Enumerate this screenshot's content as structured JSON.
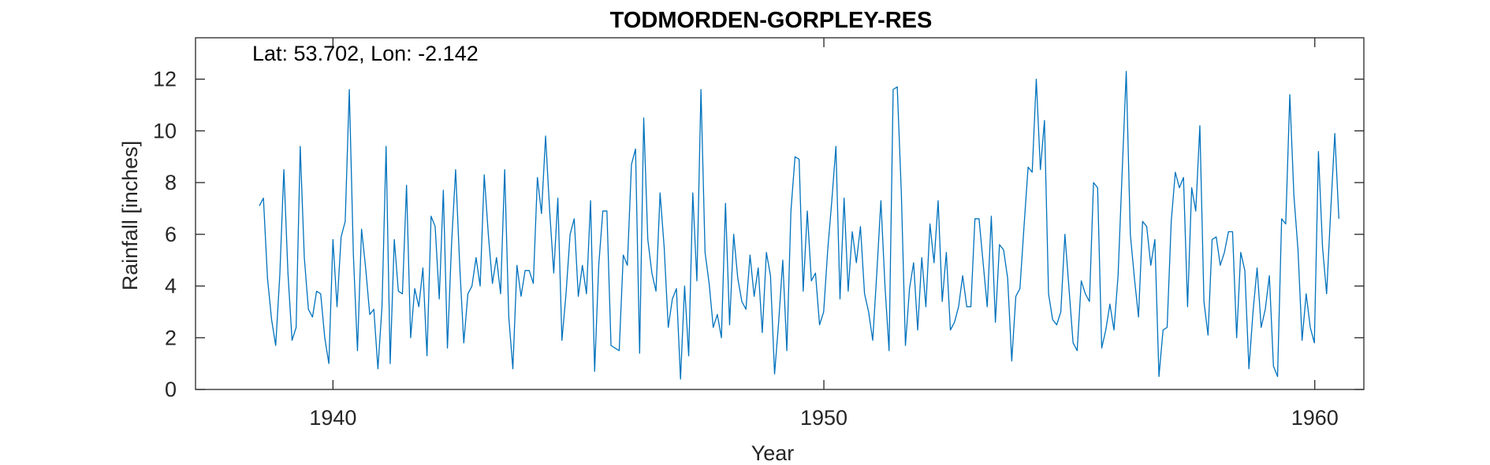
{
  "chart_data": {
    "type": "line",
    "title": "TODMORDEN-GORPLEY-RES",
    "xlabel": "Year",
    "ylabel": "Rainfall [inches]",
    "annotation": "Lat: 53.702, Lon: -2.142",
    "xlim": [
      1937.2,
      1961.0
    ],
    "ylim": [
      0,
      13.6
    ],
    "xticks": [
      1940,
      1950,
      1960
    ],
    "yticks": [
      0,
      2,
      4,
      6,
      8,
      10,
      12
    ],
    "grid": false,
    "line_color": "#0072BD",
    "series": [
      {
        "x_start": 1938.5,
        "x_step": 0.0833,
        "values": [
          7.1,
          7.4,
          4.3,
          2.7,
          1.7,
          4.4,
          8.5,
          4.5,
          1.9,
          2.4,
          9.4,
          5.1,
          3.1,
          2.8,
          3.8,
          3.7,
          2.0,
          1.0,
          5.8,
          3.2,
          5.9,
          6.5,
          11.6,
          5.2,
          1.5,
          6.2,
          4.7,
          2.9,
          3.1,
          0.8,
          3.2,
          9.4,
          1.0,
          5.8,
          3.8,
          3.7,
          7.9,
          2.0,
          3.9,
          3.2,
          4.7,
          1.3,
          6.7,
          6.3,
          3.5,
          7.7,
          1.6,
          5.6,
          8.5,
          4.8,
          1.8,
          3.7,
          4.0,
          5.1,
          4.0,
          8.3,
          6.0,
          4.1,
          5.1,
          3.7,
          8.5,
          2.8,
          0.8,
          4.8,
          3.6,
          4.6,
          4.6,
          4.1,
          8.2,
          6.8,
          9.8,
          6.9,
          4.5,
          7.4,
          1.9,
          3.7,
          6.0,
          6.6,
          3.6,
          4.8,
          3.7,
          7.3,
          0.7,
          4.8,
          6.9,
          6.9,
          1.7,
          1.6,
          1.5,
          5.2,
          4.8,
          8.7,
          9.3,
          1.4,
          10.5,
          5.8,
          4.5,
          3.8,
          7.6,
          5.5,
          2.4,
          3.5,
          3.9,
          0.4,
          4.0,
          1.3,
          7.6,
          4.2,
          11.6,
          5.3,
          4.1,
          2.4,
          2.9,
          2.0,
          7.2,
          2.5,
          6.0,
          4.3,
          3.4,
          3.1,
          5.2,
          3.6,
          4.7,
          2.2,
          5.3,
          4.4,
          0.6,
          2.6,
          5.0,
          1.5,
          6.9,
          9.0,
          8.9,
          3.8,
          6.9,
          4.2,
          4.5,
          2.5,
          3.0,
          5.4,
          7.3,
          9.4,
          3.5,
          7.4,
          3.8,
          6.1,
          4.9,
          6.3,
          3.7,
          3.0,
          1.9,
          4.5,
          7.3,
          4.0,
          1.5,
          11.6,
          11.7,
          7.6,
          1.7,
          3.9,
          4.9,
          2.3,
          5.1,
          3.2,
          6.4,
          4.9,
          7.3,
          3.4,
          5.3,
          2.3,
          2.6,
          3.2,
          4.4,
          3.2,
          3.2,
          6.6,
          6.6,
          4.9,
          3.2,
          6.7,
          2.6,
          5.6,
          5.4,
          4.3,
          1.1,
          3.6,
          3.9,
          6.3,
          8.6,
          8.4,
          12.0,
          8.5,
          10.4,
          3.7,
          2.7,
          2.5,
          3.0,
          6.0,
          3.9,
          1.8,
          1.5,
          4.2,
          3.7,
          3.4,
          8.0,
          7.8,
          1.6,
          2.3,
          3.3,
          2.3,
          4.4,
          8.4,
          12.3,
          6.0,
          4.3,
          2.8,
          6.5,
          6.3,
          4.8,
          5.8,
          0.5,
          2.3,
          2.4,
          6.5,
          8.4,
          7.8,
          8.2,
          3.2,
          7.8,
          6.9,
          10.2,
          3.4,
          2.1,
          5.8,
          5.9,
          4.8,
          5.3,
          6.1,
          6.1,
          2.0,
          5.3,
          4.6,
          0.8,
          3.0,
          4.7,
          2.4,
          3.1,
          4.4,
          0.9,
          0.5,
          6.6,
          6.4,
          11.4,
          7.5,
          5.4,
          1.9,
          3.7,
          2.4,
          1.8,
          9.2,
          5.5,
          3.7,
          6.9,
          9.9,
          6.6
        ]
      }
    ]
  }
}
